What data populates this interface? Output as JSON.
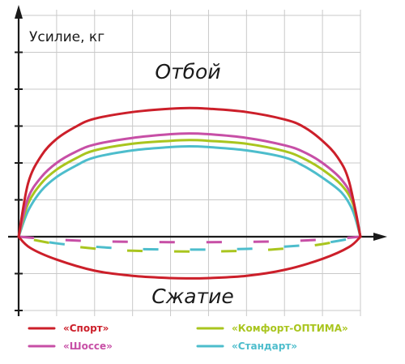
{
  "chart_data": {
    "type": "line",
    "title": "",
    "ylabel": "Усилие, кг",
    "xlabel": "",
    "regions": {
      "rebound": "Отбой",
      "compression": "Сжатие"
    },
    "xlim": [
      0,
      9
    ],
    "ylim": [
      -2,
      6
    ],
    "grid": true,
    "legend_position": "bottom",
    "series": [
      {
        "name": "«Спорт»",
        "color": "#cc1f2a",
        "rebound": [
          [
            0,
            0
          ],
          [
            0.25,
            1.45
          ],
          [
            0.6,
            2.2
          ],
          [
            1,
            2.65
          ],
          [
            1.5,
            2.98
          ],
          [
            2,
            3.2
          ],
          [
            3,
            3.38
          ],
          [
            4,
            3.47
          ],
          [
            4.5,
            3.49
          ],
          [
            5,
            3.47
          ],
          [
            6,
            3.38
          ],
          [
            7,
            3.18
          ],
          [
            7.5,
            2.98
          ],
          [
            8,
            2.6
          ],
          [
            8.4,
            2.15
          ],
          [
            8.7,
            1.5
          ],
          [
            9,
            0
          ]
        ],
        "compression": [
          [
            0,
            0
          ],
          [
            0.3,
            -0.3
          ],
          [
            1,
            -0.62
          ],
          [
            2,
            -0.92
          ],
          [
            3,
            -1.06
          ],
          [
            4,
            -1.12
          ],
          [
            4.5,
            -1.13
          ],
          [
            5,
            -1.12
          ],
          [
            6,
            -1.06
          ],
          [
            7,
            -0.9
          ],
          [
            8,
            -0.6
          ],
          [
            8.7,
            -0.28
          ],
          [
            9,
            0
          ]
        ]
      },
      {
        "name": "«Шоссе»",
        "color": "#c74fa6",
        "rebound": [
          [
            0,
            0
          ],
          [
            0.25,
            1.05
          ],
          [
            0.6,
            1.62
          ],
          [
            1,
            2.0
          ],
          [
            1.5,
            2.3
          ],
          [
            2,
            2.5
          ],
          [
            3,
            2.68
          ],
          [
            4,
            2.78
          ],
          [
            4.5,
            2.8
          ],
          [
            5,
            2.78
          ],
          [
            6,
            2.68
          ],
          [
            7,
            2.48
          ],
          [
            7.5,
            2.3
          ],
          [
            8,
            2.0
          ],
          [
            8.5,
            1.55
          ],
          [
            8.8,
            1.0
          ],
          [
            9,
            0
          ]
        ],
        "compression": [
          [
            0,
            0
          ],
          [
            1,
            -0.08
          ],
          [
            2,
            -0.12
          ],
          [
            3,
            -0.14
          ],
          [
            4.5,
            -0.15
          ],
          [
            6,
            -0.14
          ],
          [
            7,
            -0.12
          ],
          [
            8,
            -0.08
          ],
          [
            9,
            0
          ]
        ]
      },
      {
        "name": "«Комфорт-ОПТИМА»",
        "color": "#a9c51e",
        "rebound": [
          [
            0,
            0
          ],
          [
            0.25,
            0.9
          ],
          [
            0.6,
            1.45
          ],
          [
            1,
            1.82
          ],
          [
            1.5,
            2.12
          ],
          [
            2,
            2.34
          ],
          [
            3,
            2.52
          ],
          [
            4,
            2.6
          ],
          [
            4.5,
            2.62
          ],
          [
            5,
            2.6
          ],
          [
            6,
            2.52
          ],
          [
            7,
            2.32
          ],
          [
            7.5,
            2.12
          ],
          [
            8,
            1.82
          ],
          [
            8.5,
            1.4
          ],
          [
            8.8,
            0.9
          ],
          [
            9,
            0
          ]
        ],
        "compression": [
          [
            0,
            0
          ],
          [
            1,
            -0.2
          ],
          [
            2,
            -0.32
          ],
          [
            3,
            -0.38
          ],
          [
            4.5,
            -0.4
          ],
          [
            6,
            -0.38
          ],
          [
            7,
            -0.32
          ],
          [
            8,
            -0.2
          ],
          [
            9,
            0
          ]
        ]
      },
      {
        "name": "«Стандарт»",
        "color": "#4dbdcc",
        "rebound": [
          [
            0,
            0
          ],
          [
            0.25,
            0.7
          ],
          [
            0.6,
            1.25
          ],
          [
            1,
            1.62
          ],
          [
            1.5,
            1.92
          ],
          [
            2,
            2.15
          ],
          [
            3,
            2.34
          ],
          [
            4,
            2.43
          ],
          [
            4.5,
            2.45
          ],
          [
            5,
            2.43
          ],
          [
            6,
            2.34
          ],
          [
            7,
            2.15
          ],
          [
            7.5,
            1.92
          ],
          [
            8,
            1.6
          ],
          [
            8.5,
            1.2
          ],
          [
            8.8,
            0.7
          ],
          [
            9,
            0
          ]
        ],
        "compression": [
          [
            0,
            0
          ],
          [
            1,
            -0.18
          ],
          [
            2,
            -0.27
          ],
          [
            3,
            -0.33
          ],
          [
            4.5,
            -0.35
          ],
          [
            6,
            -0.33
          ],
          [
            7,
            -0.27
          ],
          [
            8,
            -0.18
          ],
          [
            9,
            0
          ]
        ]
      }
    ]
  }
}
